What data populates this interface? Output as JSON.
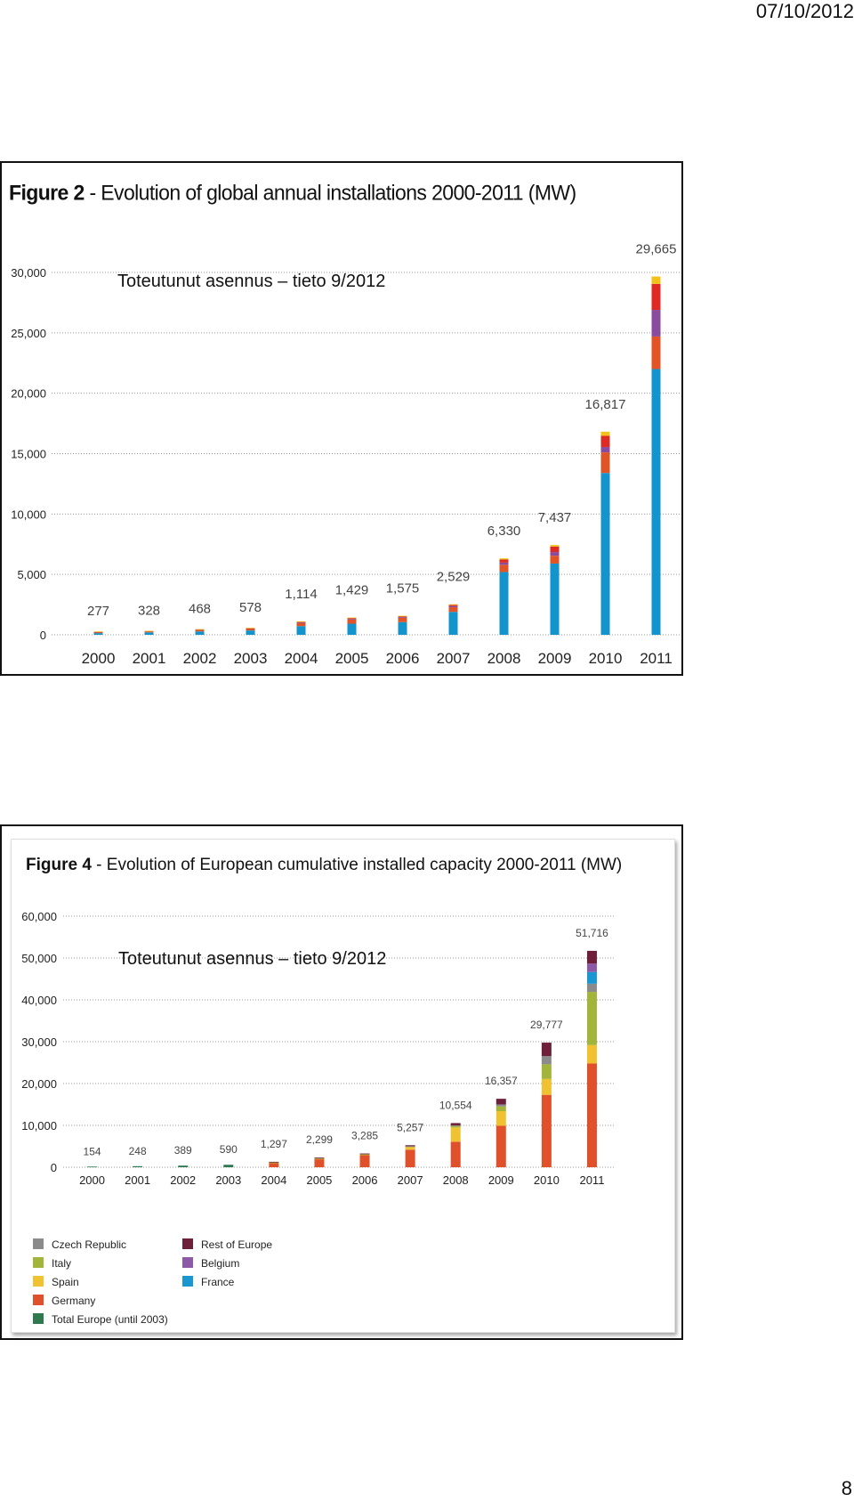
{
  "page": {
    "date": "07/10/2012",
    "page_number": "8"
  },
  "figure1": {
    "title_bold": "Figure 2",
    "title_rest": " - Evolution of global annual installations 2000-2011 (MW)",
    "note": "Toteutunut asennus – tieto 9/2012",
    "colors": {
      "main": "#1494cd",
      "lower": "#e05426",
      "mid": "#8a4b9e",
      "upper": "#de2a25",
      "top": "#f2c21a"
    },
    "chart_data": {
      "type": "bar",
      "stacked": true,
      "categories": [
        "2000",
        "2001",
        "2002",
        "2003",
        "2004",
        "2005",
        "2006",
        "2007",
        "2008",
        "2009",
        "2010",
        "2011"
      ],
      "y_ticks": [
        "0",
        "5,000",
        "10,000",
        "15,000",
        "20,000",
        "25,000",
        "30,000"
      ],
      "ylim": [
        0,
        30000
      ],
      "totals": [
        277,
        328,
        468,
        578,
        1114,
        1429,
        1575,
        2529,
        6330,
        7437,
        16817,
        29665
      ],
      "total_labels": [
        "277",
        "328",
        "468",
        "578",
        "1,114",
        "1,429",
        "1,575",
        "2,529",
        "6,330",
        "7,437",
        "16,817",
        "29,665"
      ],
      "series": [
        {
          "values": [
            140,
            200,
            280,
            360,
            720,
            920,
            1050,
            1900,
            5200,
            5900,
            13400,
            22000
          ]
        },
        {
          "values": [
            90,
            90,
            130,
            160,
            260,
            350,
            370,
            380,
            600,
            650,
            1700,
            2700
          ]
        },
        {
          "values": [
            15,
            13,
            18,
            20,
            34,
            54,
            55,
            99,
            180,
            300,
            450,
            2200
          ]
        },
        {
          "values": [
            20,
            15,
            25,
            25,
            70,
            70,
            70,
            100,
            250,
            450,
            930,
            2150
          ]
        },
        {
          "values": [
            12,
            10,
            15,
            13,
            30,
            35,
            30,
            50,
            100,
            137,
            337,
            615
          ]
        }
      ]
    }
  },
  "figure2": {
    "title_bold": "Figure 4",
    "title_rest": " - Evolution of European cumulative installed capacity 2000-2011 (MW)",
    "note": "Toteutunut asennus – tieto 9/2012",
    "legend": [
      {
        "label": "Czech Republic",
        "color": "#8b8b8b"
      },
      {
        "label": "Italy",
        "color": "#a3b43a"
      },
      {
        "label": "Spain",
        "color": "#f0c232"
      },
      {
        "label": "Germany",
        "color": "#e0502a"
      },
      {
        "label": "Total Europe (until 2003)",
        "color": "#2e7a4e"
      },
      {
        "label": "Rest of Europe",
        "color": "#6e1f3a"
      },
      {
        "label": "Belgium",
        "color": "#8d5aa8"
      },
      {
        "label": "France",
        "color": "#1a96d0"
      }
    ],
    "chart_data": {
      "type": "bar",
      "stacked": true,
      "categories": [
        "2000",
        "2001",
        "2002",
        "2003",
        "2004",
        "2005",
        "2006",
        "2007",
        "2008",
        "2009",
        "2010",
        "2011"
      ],
      "y_ticks": [
        "0",
        "10,000",
        "20,000",
        "30,000",
        "40,000",
        "50,000",
        "60,000"
      ],
      "ylim": [
        0,
        60000
      ],
      "totals": [
        154,
        248,
        389,
        590,
        1297,
        2299,
        3285,
        5257,
        10554,
        16357,
        29777,
        51716
      ],
      "total_labels": [
        "154",
        "248",
        "389",
        "590",
        "1,297",
        "2,299",
        "3,285",
        "5,257",
        "10,554",
        "16,357",
        "29,777",
        "51,716"
      ],
      "series": [
        {
          "name": "Total Europe (until 2003)",
          "values": [
            154,
            248,
            389,
            590,
            0,
            0,
            0,
            0,
            0,
            0,
            0,
            0
          ]
        },
        {
          "name": "Germany",
          "values": [
            0,
            0,
            0,
            0,
            1100,
            2000,
            2900,
            4200,
            6100,
            9900,
            17300,
            24800
          ]
        },
        {
          "name": "Spain",
          "values": [
            0,
            0,
            0,
            0,
            20,
            60,
            150,
            700,
            3400,
            3500,
            3800,
            4400
          ]
        },
        {
          "name": "Italy",
          "values": [
            0,
            0,
            0,
            0,
            20,
            35,
            50,
            120,
            450,
            1150,
            3500,
            12700
          ]
        },
        {
          "name": "Czech Republic",
          "values": [
            0,
            0,
            0,
            0,
            0,
            0,
            0,
            4,
            55,
            460,
            1950,
            1960
          ]
        },
        {
          "name": "France",
          "values": [
            0,
            0,
            0,
            0,
            0,
            0,
            0,
            0,
            0,
            0,
            0,
            2800
          ]
        },
        {
          "name": "Belgium",
          "values": [
            0,
            0,
            0,
            0,
            0,
            0,
            0,
            0,
            0,
            0,
            0,
            2000
          ]
        },
        {
          "name": "Rest of Europe",
          "values": [
            0,
            0,
            0,
            0,
            157,
            204,
            185,
            233,
            549,
            1347,
            3227,
            3056
          ]
        }
      ]
    }
  }
}
